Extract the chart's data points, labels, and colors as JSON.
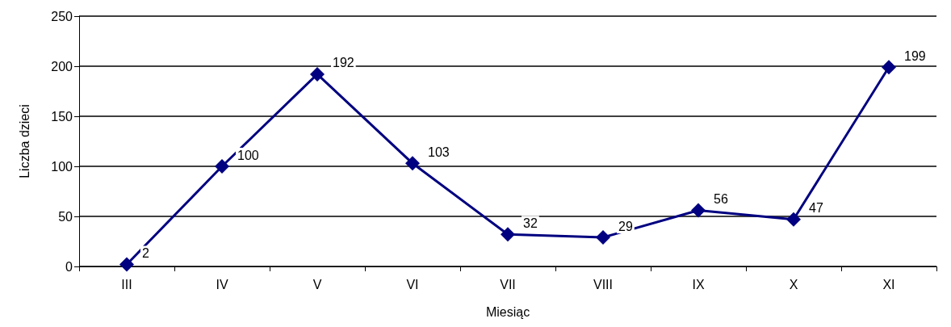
{
  "chart_data": {
    "type": "line",
    "xlabel": "Miesiąc",
    "ylabel": "Liczba dzieci",
    "categories": [
      "III",
      "IV",
      "V",
      "VI",
      "VII",
      "VIII",
      "IX",
      "X",
      "XI"
    ],
    "series": [
      {
        "color": "#000080",
        "values": [
          2,
          100,
          192,
          103,
          32,
          29,
          56,
          47,
          199
        ]
      }
    ],
    "ylim": [
      0,
      250
    ],
    "yticks": [
      0,
      50,
      100,
      150,
      200,
      250
    ],
    "grid": "y",
    "marker": "diamond",
    "line_style": "solid",
    "data_labels": true
  }
}
